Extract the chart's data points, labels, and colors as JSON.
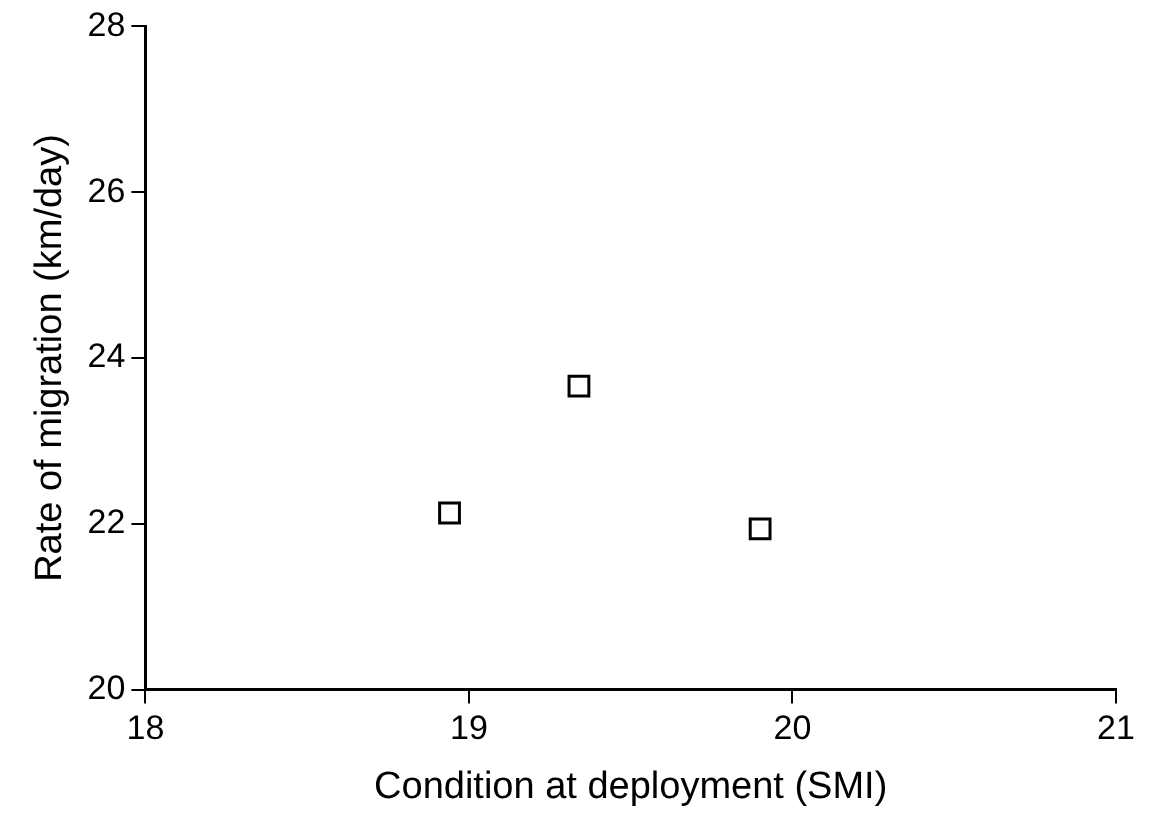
{
  "chart_data": {
    "type": "scatter",
    "xlabel": "Condition at deployment (SMI)",
    "ylabel": "Rate of migration (km/day)",
    "x": [
      18.94,
      19.34,
      19.9
    ],
    "values": [
      22.13,
      23.66,
      21.94
    ],
    "color": "#000000",
    "xlim": [
      18,
      21
    ],
    "xticks": [
      18,
      19,
      20,
      21
    ],
    "ylim": [
      20,
      28
    ],
    "yticks": [
      20,
      22,
      24,
      26,
      28
    ],
    "grid": false,
    "legend": false,
    "marker": "square"
  }
}
